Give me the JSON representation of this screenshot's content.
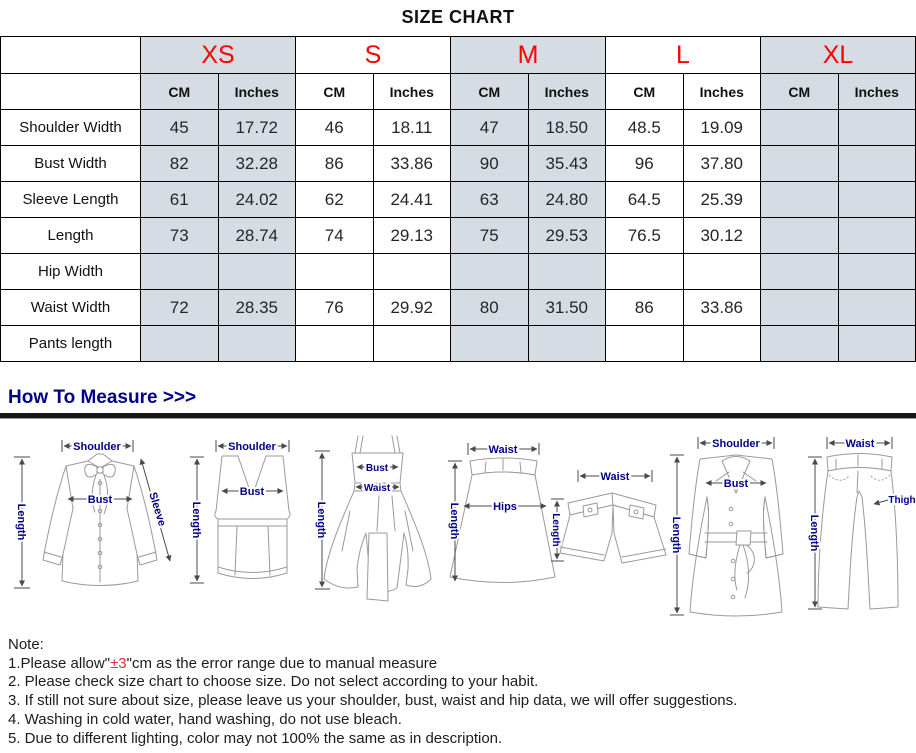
{
  "title": "SIZE CHART",
  "colors": {
    "size_label_red": "#ff0000",
    "header_shade": "#d6dce4",
    "measure_navy": "#00008b",
    "note_red": "#e03030"
  },
  "table": {
    "corner": "",
    "sizes": [
      {
        "label": "XS",
        "shaded": true
      },
      {
        "label": "S",
        "shaded": false
      },
      {
        "label": "M",
        "shaded": true
      },
      {
        "label": "L",
        "shaded": false
      },
      {
        "label": "XL",
        "shaded": true
      }
    ],
    "unit_headers": [
      "CM",
      "Inches"
    ],
    "rows": [
      {
        "label": "Shoulder Width",
        "values": [
          "45",
          "17.72",
          "46",
          "18.11",
          "47",
          "18.50",
          "48.5",
          "19.09",
          "",
          ""
        ]
      },
      {
        "label": "Bust Width",
        "values": [
          "82",
          "32.28",
          "86",
          "33.86",
          "90",
          "35.43",
          "96",
          "37.80",
          "",
          ""
        ]
      },
      {
        "label": "Sleeve Length",
        "values": [
          "61",
          "24.02",
          "62",
          "24.41",
          "63",
          "24.80",
          "64.5",
          "25.39",
          "",
          ""
        ]
      },
      {
        "label": "Length",
        "values": [
          "73",
          "28.74",
          "74",
          "29.13",
          "75",
          "29.53",
          "76.5",
          "30.12",
          "",
          ""
        ]
      },
      {
        "label": "Hip Width",
        "values": [
          "",
          "",
          "",
          "",
          "",
          "",
          "",
          "",
          "",
          ""
        ]
      },
      {
        "label": "Waist Width",
        "values": [
          "72",
          "28.35",
          "76",
          "29.92",
          "80",
          "31.50",
          "86",
          "33.86",
          "",
          ""
        ]
      },
      {
        "label": "Pants length",
        "values": [
          "",
          "",
          "",
          "",
          "",
          "",
          "",
          "",
          "",
          ""
        ]
      }
    ]
  },
  "measure": {
    "heading": "How To Measure >>>",
    "figures": [
      {
        "name": "blouse",
        "labels": [
          "Shoulder",
          "Length",
          "Bust",
          "Sleeve"
        ]
      },
      {
        "name": "top",
        "labels": [
          "Shoulder",
          "Length",
          "Bust"
        ]
      },
      {
        "name": "dress",
        "labels": [
          "Length",
          "Bust",
          "Waist"
        ]
      },
      {
        "name": "skirt",
        "labels": [
          "Waist",
          "Length",
          "Hips"
        ]
      },
      {
        "name": "shorts",
        "labels": [
          "Waist",
          "Length"
        ]
      },
      {
        "name": "coat",
        "labels": [
          "Shoulder",
          "Length",
          "Bust"
        ]
      },
      {
        "name": "pants",
        "labels": [
          "Waist",
          "Length",
          "Thigh"
        ]
      }
    ]
  },
  "note": {
    "heading": "Note:",
    "line1_prefix": "1.Please allow\"",
    "line1_red": "±3",
    "line1_suffix": "\"cm as the error range due to manual measure",
    "lines": [
      "2. Please check size chart to choose size. Do not select according to your habit.",
      "3. If still not sure about size, please leave us your shoulder, bust, waist and hip data, we will offer suggestions.",
      "4. Washing in cold water, hand washing, do not use bleach.",
      "5. Due to different lighting, color may not 100% the same as in description."
    ]
  }
}
